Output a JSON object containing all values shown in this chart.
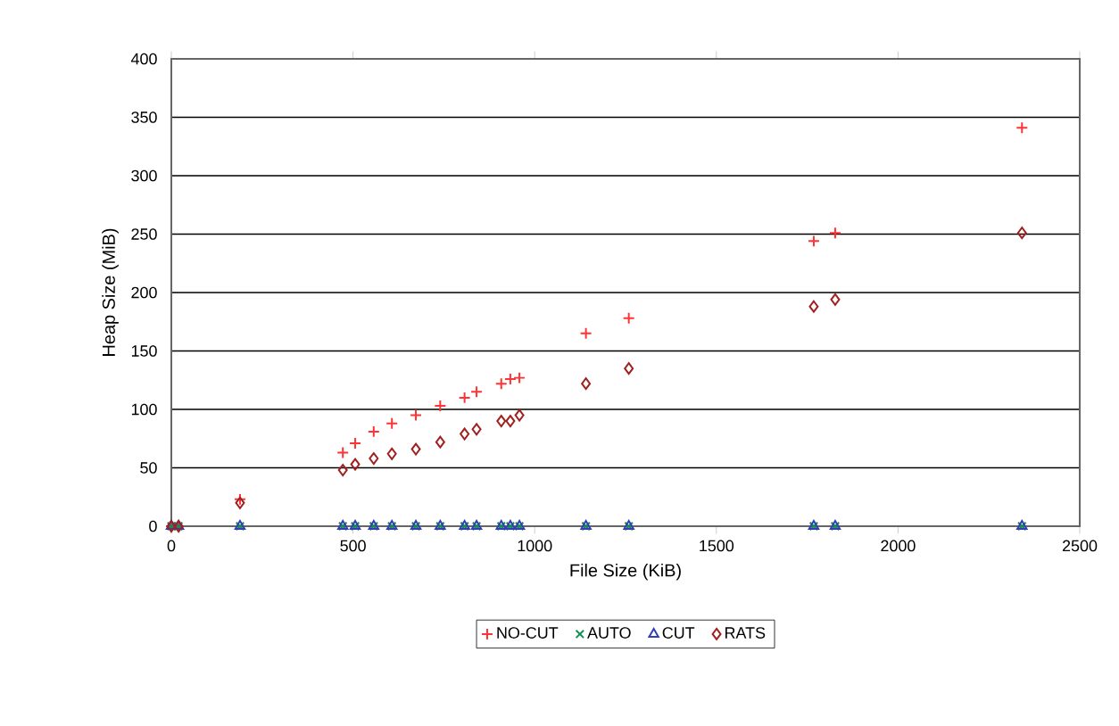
{
  "chart_data": {
    "type": "scatter",
    "xlabel": "File Size (KiB)",
    "ylabel": "Heap Size (MiB)",
    "x": [
      0,
      20,
      189,
      472,
      506,
      557,
      607,
      673,
      740,
      807,
      840,
      908,
      933,
      958,
      1141,
      1259,
      1768,
      1827,
      2341
    ],
    "series": [
      {
        "name": "NO-CUT",
        "color": "#ff3333",
        "marker": "plus",
        "values": [
          0,
          0,
          23,
          63,
          71,
          81,
          88,
          95,
          103,
          110,
          115,
          122,
          126,
          127,
          165,
          178,
          244,
          251,
          341
        ]
      },
      {
        "name": "AUTO",
        "color": "#109050",
        "marker": "cross",
        "values": [
          0,
          0,
          0,
          0,
          0,
          0,
          0,
          0,
          0,
          0,
          0,
          0,
          0,
          0,
          0,
          0,
          0,
          0,
          0
        ]
      },
      {
        "name": "CUT",
        "color": "#3040b0",
        "marker": "triangle",
        "values": [
          0,
          0,
          0,
          0,
          0,
          0,
          0,
          0,
          0,
          0,
          0,
          0,
          0,
          0,
          0,
          0,
          0,
          0,
          0
        ]
      },
      {
        "name": "RATS",
        "color": "#a02020",
        "marker": "diamond",
        "values": [
          0,
          0,
          20,
          48,
          53,
          58,
          62,
          66,
          72,
          79,
          83,
          90,
          90,
          95,
          122,
          135,
          188,
          194,
          251
        ]
      }
    ],
    "xlim": [
      0,
      2500
    ],
    "xticks": [
      0,
      500,
      1000,
      1500,
      2000,
      2500
    ],
    "ylim": [
      0,
      400
    ],
    "yticks": [
      0,
      50,
      100,
      150,
      200,
      250,
      300,
      350,
      400
    ],
    "grid": "y",
    "legend": "bottom"
  }
}
